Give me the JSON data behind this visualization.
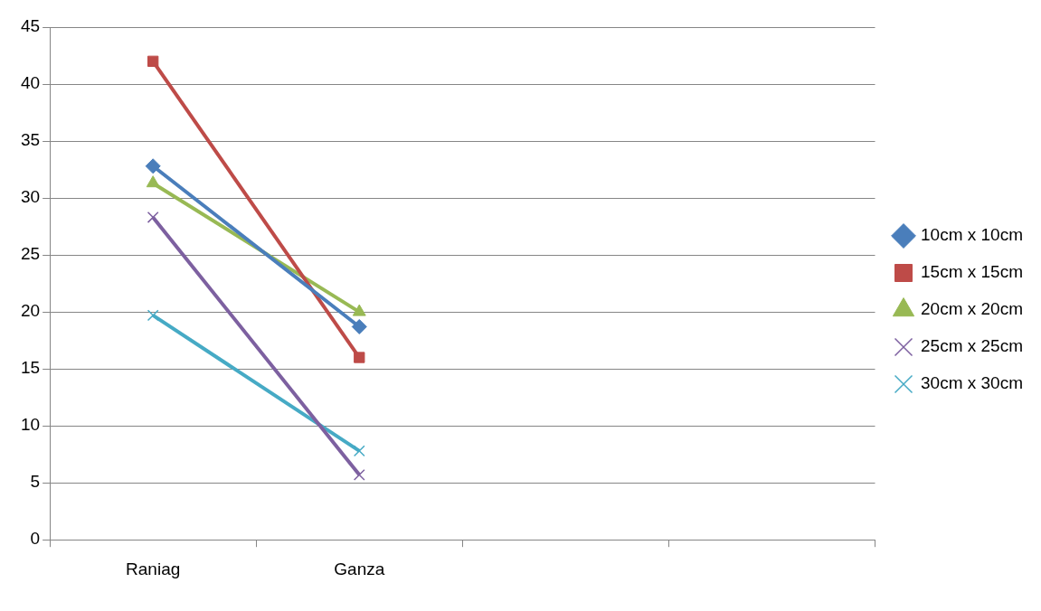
{
  "chart_data": {
    "type": "line",
    "categories": [
      "Raniag",
      "Ganza",
      null,
      null
    ],
    "series": [
      {
        "name": "10cm x 10cm",
        "color": "#4a7ebb",
        "marker": "diamond",
        "values": [
          32.8,
          18.7,
          null,
          null
        ]
      },
      {
        "name": "15cm x 15cm",
        "color": "#be4b48",
        "marker": "square",
        "values": [
          42.0,
          16.0,
          null,
          null
        ]
      },
      {
        "name": "20cm x 20cm",
        "color": "#98b954",
        "marker": "triangle",
        "values": [
          31.3,
          20.0,
          null,
          null
        ]
      },
      {
        "name": "25cm x 25cm",
        "color": "#7d60a0",
        "marker": "cross",
        "values": [
          28.3,
          5.7,
          null,
          null
        ]
      },
      {
        "name": "30cm x 30cm",
        "color": "#46aac5",
        "marker": "cross",
        "values": [
          19.7,
          7.8,
          null,
          null
        ]
      }
    ],
    "ylim": [
      0,
      45
    ],
    "yticks": [
      0,
      5,
      10,
      15,
      20,
      25,
      30,
      35,
      40,
      45
    ],
    "grid": "y",
    "legend": "right",
    "line_style": "solid"
  }
}
